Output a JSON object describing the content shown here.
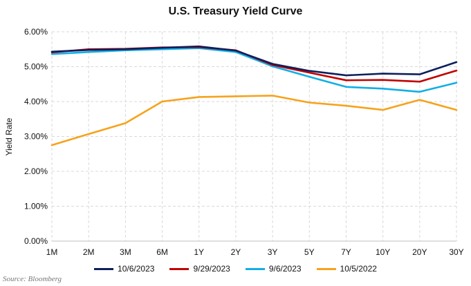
{
  "chart_data": {
    "type": "line",
    "title": "U.S. Treasury Yield Curve",
    "xlabel": "",
    "ylabel": "Yield Rate",
    "categories": [
      "1M",
      "2M",
      "3M",
      "6M",
      "1Y",
      "2Y",
      "3Y",
      "5Y",
      "7Y",
      "10Y",
      "20Y",
      "30Y"
    ],
    "ylim": [
      0,
      6
    ],
    "yticks": [
      "0.00%",
      "1.00%",
      "2.00%",
      "3.00%",
      "4.00%",
      "5.00%",
      "6.00%"
    ],
    "grid": true,
    "legend_position": "bottom",
    "series": [
      {
        "name": "10/6/2023",
        "color": "#0d1f5c",
        "values": [
          5.43,
          5.48,
          5.5,
          5.54,
          5.58,
          5.46,
          5.08,
          4.88,
          4.75,
          4.8,
          4.78,
          5.13
        ]
      },
      {
        "name": "9/29/2023",
        "color": "#c00000",
        "values": [
          5.41,
          5.5,
          5.51,
          5.55,
          5.56,
          5.47,
          5.05,
          4.83,
          4.61,
          4.62,
          4.57,
          4.89
        ]
      },
      {
        "name": "9/6/2023",
        "color": "#12aee6",
        "values": [
          5.36,
          5.42,
          5.47,
          5.5,
          5.53,
          5.42,
          5.01,
          4.71,
          4.42,
          4.37,
          4.28,
          4.54
        ]
      },
      {
        "name": "10/5/2022",
        "color": "#f7a21b",
        "values": [
          2.75,
          3.07,
          3.38,
          4.0,
          4.13,
          4.15,
          4.17,
          3.97,
          3.88,
          3.76,
          4.05,
          3.76
        ]
      }
    ],
    "source": "Source: Bloomberg"
  }
}
